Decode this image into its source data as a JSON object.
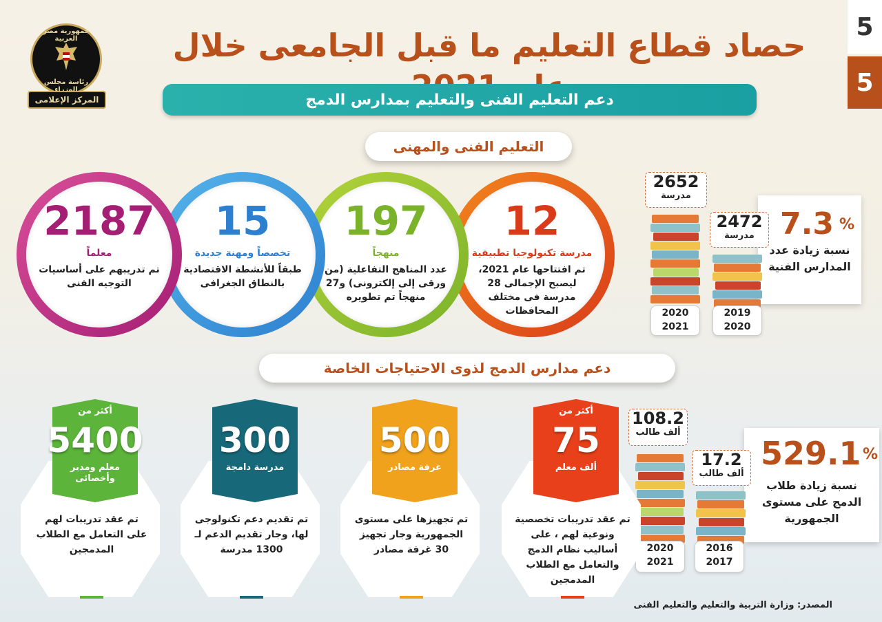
{
  "page_numbers": {
    "top": "5",
    "bottom": "5"
  },
  "logo": {
    "ring_top": "جمهورية مصر العربية",
    "ring_bottom": "رئاسة مجلس الوزراء",
    "ribbon": "المركز الإعلامى"
  },
  "title": "حصاد قطاع التعليم ما قبل الجامعى خلال عام 2021",
  "subtitle": "دعم التعليم الفنى والتعليم بمدارس الدمج",
  "section1_title": "التعليم الفنى والمهنى",
  "section2_title": "دعم مدارس الدمج لذوى الاحتياجات الخاصة",
  "circles": [
    {
      "num": "12",
      "unit": "مدرسة تكنولوجيا تطبيقية",
      "desc": "تم افتتاحها عام 2021، ليصبح الإجمالى 28 مدرسة فى مختلف المحافظات",
      "color": "#d93b1a"
    },
    {
      "num": "197",
      "unit": "منهجاً",
      "desc": "عدد المناهج التفاعلية (من ورقى إلى إلكترونى) و27 منهجاً تم تطويره",
      "color": "#7ab22a"
    },
    {
      "num": "15",
      "unit": "تخصصاً ومهنة جديدة",
      "desc": "طبقاً للأنشطة الاقتصادية بالنطاق الجغرافى",
      "color": "#2d7fcf"
    },
    {
      "num": "2187",
      "unit": "معلماً",
      "desc": "تم تدريبهم على أساسيات التوجيه الفنى",
      "color": "#a41e74"
    }
  ],
  "tech_stats": {
    "pct": "7.3",
    "pct_sign": "%",
    "label": "نسبة زيادة عدد المدارس الفنية",
    "left": {
      "num": "2652",
      "unit": "مدرسة",
      "year1": "2020",
      "year2": "2021"
    },
    "right": {
      "num": "2472",
      "unit": "مدرسة",
      "year1": "2019",
      "year2": "2020"
    }
  },
  "merge_stats": {
    "pct": "529.1",
    "pct_sign": "%",
    "label": "نسبة زيادة طلاب الدمج على مستوى الجمهورية",
    "left": {
      "num": "108.2",
      "unit": "ألف طالب",
      "year1": "2020",
      "year2": "2021"
    },
    "right": {
      "num": "17.2",
      "unit": "ألف طالب",
      "year1": "2016",
      "year2": "2017"
    }
  },
  "hex_cards": [
    {
      "prefix": "أكثر من",
      "big": "75",
      "sub": "ألف معلم",
      "desc": "تم عقد تدريبات تخصصية ونوعية لهم ، على أساليب نظام الدمج والتعامل مع الطلاب المدمجين",
      "color": "#e8401a"
    },
    {
      "prefix": "",
      "big": "500",
      "sub": "غرفة مصادر",
      "desc": "تم تجهيزها على مستوى الجمهورية وجار تجهيز 30 غرفة مصادر",
      "color": "#f0a21c"
    },
    {
      "prefix": "",
      "big": "300",
      "sub": "مدرسة دامجة",
      "desc": "تم تقديم دعم تكنولوجى لها، وجار تقديم الدعم لـ 1300 مدرسة",
      "color": "#17697a"
    },
    {
      "prefix": "أكثر من",
      "big": "5400",
      "sub": "معلم ومدير وأخصائى",
      "desc": "تم عقد تدريبات لهم على التعامل مع الطلاب المدمجين",
      "color": "#5cb43a"
    }
  ],
  "source": "المصدر: وزارة التربية والتعليم والتعليم الفنى"
}
